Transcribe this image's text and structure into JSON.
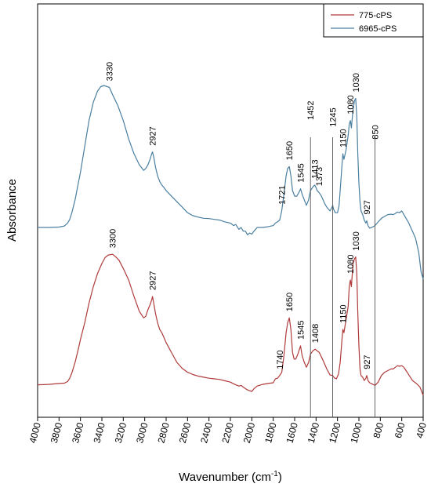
{
  "chart_data": {
    "type": "line",
    "xlabel": "Wavenumber",
    "xlabel_unit_base": "cm",
    "xlabel_unit_exp": "-1",
    "ylabel": "Absorbance",
    "xlim": [
      4000,
      400
    ],
    "x_reversed": true,
    "x_ticks": [
      "4000",
      "3800",
      "3600",
      "3400",
      "3200",
      "3000",
      "2800",
      "2600",
      "2400",
      "2200",
      "2000",
      "1800",
      "1600",
      "1400",
      "1200",
      "1000",
      "800",
      "600",
      "400"
    ],
    "y_ticks_shown": false,
    "grid": false,
    "legend_position": "top-right",
    "vertical_reference_lines": [
      1452,
      1245,
      850
    ],
    "series": [
      {
        "name": "775-cPS",
        "color": "#b03a3a",
        "points": [
          [
            4000,
            0.032
          ],
          [
            3900,
            0.033
          ],
          [
            3800,
            0.036
          ],
          [
            3750,
            0.037
          ],
          [
            3720,
            0.042
          ],
          [
            3700,
            0.052
          ],
          [
            3680,
            0.068
          ],
          [
            3650,
            0.1
          ],
          [
            3620,
            0.14
          ],
          [
            3600,
            0.17
          ],
          [
            3560,
            0.22
          ],
          [
            3520,
            0.28
          ],
          [
            3480,
            0.33
          ],
          [
            3440,
            0.37
          ],
          [
            3400,
            0.4
          ],
          [
            3370,
            0.418
          ],
          [
            3340,
            0.426
          ],
          [
            3300,
            0.428
          ],
          [
            3270,
            0.42
          ],
          [
            3240,
            0.41
          ],
          [
            3200,
            0.385
          ],
          [
            3150,
            0.35
          ],
          [
            3100,
            0.3
          ],
          [
            3050,
            0.255
          ],
          [
            3010,
            0.235
          ],
          [
            2990,
            0.24
          ],
          [
            2970,
            0.26
          ],
          [
            2950,
            0.275
          ],
          [
            2935,
            0.29
          ],
          [
            2927,
            0.3
          ],
          [
            2915,
            0.278
          ],
          [
            2900,
            0.25
          ],
          [
            2880,
            0.22
          ],
          [
            2860,
            0.2
          ],
          [
            2840,
            0.19
          ],
          [
            2820,
            0.175
          ],
          [
            2800,
            0.16
          ],
          [
            2780,
            0.148
          ],
          [
            2750,
            0.13
          ],
          [
            2700,
            0.1
          ],
          [
            2650,
            0.082
          ],
          [
            2600,
            0.07
          ],
          [
            2550,
            0.063
          ],
          [
            2500,
            0.058
          ],
          [
            2450,
            0.055
          ],
          [
            2400,
            0.052
          ],
          [
            2350,
            0.05
          ],
          [
            2300,
            0.048
          ],
          [
            2250,
            0.044
          ],
          [
            2200,
            0.04
          ],
          [
            2170,
            0.035
          ],
          [
            2150,
            0.032
          ],
          [
            2120,
            0.028
          ],
          [
            2100,
            0.03
          ],
          [
            2080,
            0.025
          ],
          [
            2050,
            0.018
          ],
          [
            2030,
            0.015
          ],
          [
            2000,
            0.012
          ],
          [
            1980,
            0.02
          ],
          [
            1950,
            0.028
          ],
          [
            1900,
            0.033
          ],
          [
            1850,
            0.036
          ],
          [
            1800,
            0.038
          ],
          [
            1780,
            0.05
          ],
          [
            1760,
            0.052
          ],
          [
            1740,
            0.06
          ],
          [
            1720,
            0.07
          ],
          [
            1700,
            0.12
          ],
          [
            1680,
            0.19
          ],
          [
            1665,
            0.22
          ],
          [
            1650,
            0.235
          ],
          [
            1635,
            0.2
          ],
          [
            1620,
            0.13
          ],
          [
            1605,
            0.11
          ],
          [
            1590,
            0.11
          ],
          [
            1570,
            0.125
          ],
          [
            1545,
            0.15
          ],
          [
            1530,
            0.12
          ],
          [
            1510,
            0.1
          ],
          [
            1490,
            0.085
          ],
          [
            1470,
            0.1
          ],
          [
            1452,
            0.125
          ],
          [
            1430,
            0.135
          ],
          [
            1408,
            0.14
          ],
          [
            1390,
            0.135
          ],
          [
            1370,
            0.13
          ],
          [
            1340,
            0.11
          ],
          [
            1300,
            0.08
          ],
          [
            1270,
            0.062
          ],
          [
            1245,
            0.06
          ],
          [
            1230,
            0.053
          ],
          [
            1210,
            0.05
          ],
          [
            1190,
            0.065
          ],
          [
            1175,
            0.1
          ],
          [
            1160,
            0.16
          ],
          [
            1150,
            0.2
          ],
          [
            1140,
            0.19
          ],
          [
            1120,
            0.23
          ],
          [
            1100,
            0.27
          ],
          [
            1090,
            0.33
          ],
          [
            1080,
            0.35
          ],
          [
            1070,
            0.33
          ],
          [
            1055,
            0.4
          ],
          [
            1040,
            0.415
          ],
          [
            1030,
            0.42
          ],
          [
            1020,
            0.37
          ],
          [
            1010,
            0.25
          ],
          [
            1000,
            0.15
          ],
          [
            990,
            0.08
          ],
          [
            980,
            0.06
          ],
          [
            965,
            0.055
          ],
          [
            950,
            0.045
          ],
          [
            935,
            0.052
          ],
          [
            927,
            0.06
          ],
          [
            915,
            0.045
          ],
          [
            900,
            0.038
          ],
          [
            880,
            0.035
          ],
          [
            850,
            0.03
          ],
          [
            820,
            0.04
          ],
          [
            790,
            0.06
          ],
          [
            760,
            0.07
          ],
          [
            730,
            0.075
          ],
          [
            700,
            0.08
          ],
          [
            680,
            0.08
          ],
          [
            660,
            0.085
          ],
          [
            640,
            0.09
          ],
          [
            620,
            0.088
          ],
          [
            600,
            0.09
          ],
          [
            580,
            0.085
          ],
          [
            560,
            0.075
          ],
          [
            540,
            0.065
          ],
          [
            500,
            0.045
          ],
          [
            460,
            0.035
          ],
          [
            430,
            0.025
          ],
          [
            400,
            0.0
          ]
        ]
      },
      {
        "name": "6965-cPS",
        "color": "#4a7fa0",
        "points": [
          [
            4000,
            0.0
          ],
          [
            3900,
            0.0
          ],
          [
            3800,
            0.001
          ],
          [
            3750,
            0.004
          ],
          [
            3720,
            0.012
          ],
          [
            3700,
            0.022
          ],
          [
            3680,
            0.04
          ],
          [
            3650,
            0.075
          ],
          [
            3620,
            0.12
          ],
          [
            3600,
            0.15
          ],
          [
            3560,
            0.22
          ],
          [
            3520,
            0.29
          ],
          [
            3480,
            0.34
          ],
          [
            3440,
            0.37
          ],
          [
            3410,
            0.382
          ],
          [
            3380,
            0.385
          ],
          [
            3350,
            0.382
          ],
          [
            3330,
            0.38
          ],
          [
            3300,
            0.36
          ],
          [
            3250,
            0.33
          ],
          [
            3200,
            0.29
          ],
          [
            3150,
            0.24
          ],
          [
            3100,
            0.2
          ],
          [
            3050,
            0.17
          ],
          [
            3010,
            0.155
          ],
          [
            2990,
            0.16
          ],
          [
            2970,
            0.17
          ],
          [
            2950,
            0.185
          ],
          [
            2935,
            0.2
          ],
          [
            2927,
            0.205
          ],
          [
            2915,
            0.19
          ],
          [
            2900,
            0.165
          ],
          [
            2880,
            0.14
          ],
          [
            2860,
            0.125
          ],
          [
            2840,
            0.115
          ],
          [
            2820,
            0.108
          ],
          [
            2800,
            0.1
          ],
          [
            2750,
            0.085
          ],
          [
            2700,
            0.07
          ],
          [
            2650,
            0.055
          ],
          [
            2600,
            0.04
          ],
          [
            2550,
            0.032
          ],
          [
            2500,
            0.028
          ],
          [
            2450,
            0.025
          ],
          [
            2400,
            0.024
          ],
          [
            2350,
            0.022
          ],
          [
            2300,
            0.02
          ],
          [
            2250,
            0.015
          ],
          [
            2200,
            0.012
          ],
          [
            2170,
            0.005
          ],
          [
            2150,
            0.008
          ],
          [
            2120,
            -0.005
          ],
          [
            2100,
            0.0
          ],
          [
            2080,
            -0.01
          ],
          [
            2060,
            -0.01
          ],
          [
            2040,
            -0.02
          ],
          [
            2020,
            -0.015
          ],
          [
            2000,
            -0.018
          ],
          [
            1980,
            -0.01
          ],
          [
            1950,
            0.0
          ],
          [
            1900,
            0.0
          ],
          [
            1850,
            0.002
          ],
          [
            1800,
            0.005
          ],
          [
            1780,
            0.012
          ],
          [
            1760,
            0.015
          ],
          [
            1740,
            0.02
          ],
          [
            1721,
            0.045
          ],
          [
            1700,
            0.09
          ],
          [
            1680,
            0.14
          ],
          [
            1665,
            0.16
          ],
          [
            1650,
            0.165
          ],
          [
            1635,
            0.14
          ],
          [
            1620,
            0.1
          ],
          [
            1600,
            0.085
          ],
          [
            1580,
            0.085
          ],
          [
            1560,
            0.095
          ],
          [
            1545,
            0.105
          ],
          [
            1530,
            0.09
          ],
          [
            1510,
            0.075
          ],
          [
            1490,
            0.06
          ],
          [
            1470,
            0.075
          ],
          [
            1452,
            0.1
          ],
          [
            1430,
            0.11
          ],
          [
            1413,
            0.115
          ],
          [
            1400,
            0.108
          ],
          [
            1390,
            0.1
          ],
          [
            1373,
            0.095
          ],
          [
            1350,
            0.085
          ],
          [
            1320,
            0.065
          ],
          [
            1300,
            0.055
          ],
          [
            1270,
            0.045
          ],
          [
            1250,
            0.055
          ],
          [
            1245,
            0.06
          ],
          [
            1235,
            0.048
          ],
          [
            1220,
            0.04
          ],
          [
            1200,
            0.04
          ],
          [
            1185,
            0.06
          ],
          [
            1175,
            0.1
          ],
          [
            1160,
            0.16
          ],
          [
            1150,
            0.2
          ],
          [
            1140,
            0.185
          ],
          [
            1120,
            0.21
          ],
          [
            1100,
            0.25
          ],
          [
            1090,
            0.28
          ],
          [
            1080,
            0.29
          ],
          [
            1070,
            0.27
          ],
          [
            1055,
            0.32
          ],
          [
            1040,
            0.345
          ],
          [
            1030,
            0.35
          ],
          [
            1020,
            0.3
          ],
          [
            1010,
            0.2
          ],
          [
            1000,
            0.12
          ],
          [
            990,
            0.07
          ],
          [
            980,
            0.045
          ],
          [
            965,
            0.035
          ],
          [
            950,
            0.02
          ],
          [
            935,
            0.012
          ],
          [
            927,
            0.018
          ],
          [
            915,
            0.005
          ],
          [
            900,
            -0.002
          ],
          [
            880,
            0.0
          ],
          [
            850,
            0.005
          ],
          [
            820,
            0.015
          ],
          [
            790,
            0.025
          ],
          [
            760,
            0.03
          ],
          [
            730,
            0.035
          ],
          [
            700,
            0.036
          ],
          [
            680,
            0.035
          ],
          [
            660,
            0.038
          ],
          [
            640,
            0.042
          ],
          [
            620,
            0.04
          ],
          [
            600,
            0.045
          ],
          [
            580,
            0.035
          ],
          [
            560,
            0.025
          ],
          [
            540,
            0.015
          ],
          [
            500,
            -0.01
          ],
          [
            470,
            -0.03
          ],
          [
            440,
            -0.07
          ],
          [
            420,
            -0.12
          ],
          [
            400,
            -0.14
          ]
        ]
      }
    ],
    "peak_labels": [
      {
        "series": 1,
        "x": 3330,
        "label": "3330"
      },
      {
        "series": 1,
        "x": 2927,
        "label": "2927"
      },
      {
        "series": 1,
        "x": 1721,
        "label": "1721"
      },
      {
        "series": 1,
        "x": 1650,
        "label": "1650"
      },
      {
        "series": 1,
        "x": 1545,
        "label": "1545"
      },
      {
        "series": 1,
        "x": 1452,
        "label": "1452"
      },
      {
        "series": 1,
        "x": 1413,
        "label": "1413"
      },
      {
        "series": 1,
        "x": 1373,
        "label": "1373"
      },
      {
        "series": 1,
        "x": 1245,
        "label": "1245"
      },
      {
        "series": 1,
        "x": 1150,
        "label": "1150"
      },
      {
        "series": 1,
        "x": 1080,
        "label": "1080"
      },
      {
        "series": 1,
        "x": 1030,
        "label": "1030"
      },
      {
        "series": 1,
        "x": 927,
        "label": "927"
      },
      {
        "series": 1,
        "x": 850,
        "label": "850"
      },
      {
        "series": 0,
        "x": 3300,
        "label": "3300"
      },
      {
        "series": 0,
        "x": 2927,
        "label": "2927"
      },
      {
        "series": 0,
        "x": 1740,
        "label": "1740"
      },
      {
        "series": 0,
        "x": 1650,
        "label": "1650"
      },
      {
        "series": 0,
        "x": 1545,
        "label": "1545"
      },
      {
        "series": 0,
        "x": 1408,
        "label": "1408"
      },
      {
        "series": 0,
        "x": 1150,
        "label": "1150"
      },
      {
        "series": 0,
        "x": 1080,
        "label": "1080"
      },
      {
        "series": 0,
        "x": 1030,
        "label": "1030"
      },
      {
        "series": 0,
        "x": 927,
        "label": "927"
      }
    ]
  }
}
